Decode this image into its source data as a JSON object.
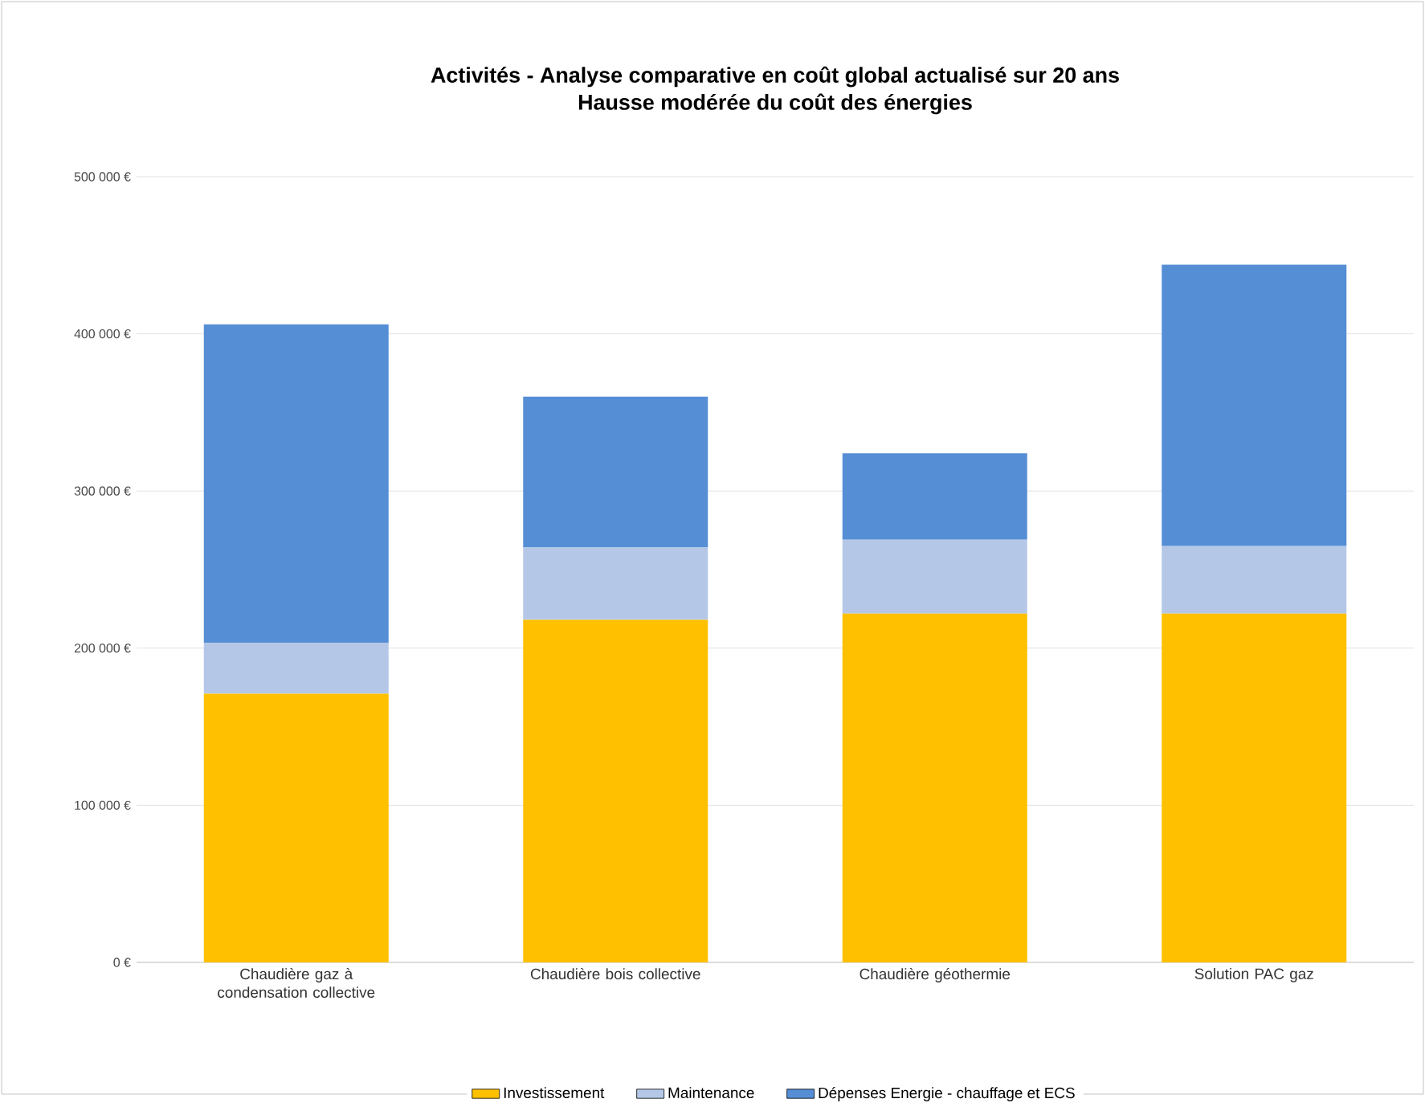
{
  "chart_data": {
    "type": "bar",
    "stacked": true,
    "title": "Activités - Analyse comparative en coût global actualisé sur 20 ans",
    "subtitle": "Hausse modérée du coût des énergies",
    "categories": [
      "Chaudière gaz à condensation collective",
      "Chaudière bois collective",
      "Chaudière géothermie",
      "Solution PAC gaz"
    ],
    "series": [
      {
        "name": "Investissement",
        "color": "#ffc000",
        "values": [
          171000,
          218000,
          222000,
          222000
        ]
      },
      {
        "name": "Maintenance",
        "color": "#b4c7e7",
        "values": [
          32500,
          46000,
          47000,
          43000
        ]
      },
      {
        "name": "Dépenses Energie - chauffage et ECS",
        "color": "#558ed5",
        "values": [
          202500,
          96000,
          55000,
          179000
        ]
      }
    ],
    "ylim": [
      0,
      500000
    ],
    "yticks": [
      {
        "value": 0,
        "label": "0 €"
      },
      {
        "value": 100000,
        "label": "100 000 €"
      },
      {
        "value": 200000,
        "label": "200 000 €"
      },
      {
        "value": 300000,
        "label": "300 000 €"
      },
      {
        "value": 400000,
        "label": "400 000 €"
      },
      {
        "value": 500000,
        "label": "500 000 €"
      }
    ],
    "grid": "y",
    "legend": "bottom"
  }
}
